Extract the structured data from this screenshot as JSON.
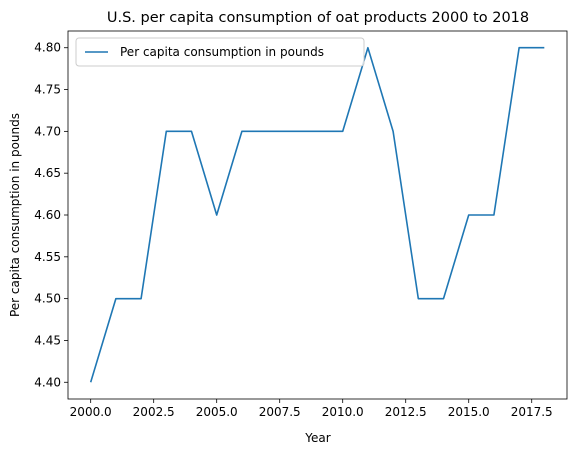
{
  "chart_data": {
    "type": "line",
    "title": "U.S. per capita consumption of oat products 2000 to 2018",
    "xlabel": "Year",
    "ylabel": "Per capita consumption in pounds",
    "x": [
      2000,
      2001,
      2002,
      2003,
      2004,
      2005,
      2006,
      2007,
      2008,
      2009,
      2010,
      2011,
      2012,
      2013,
      2014,
      2015,
      2016,
      2017,
      2018
    ],
    "series": [
      {
        "name": "Per capita consumption in pounds",
        "color": "#1f77b4",
        "values": [
          4.4,
          4.5,
          4.5,
          4.7,
          4.7,
          4.6,
          4.7,
          4.7,
          4.7,
          4.7,
          4.7,
          4.8,
          4.7,
          4.5,
          4.5,
          4.6,
          4.6,
          4.8,
          4.8
        ]
      }
    ],
    "xlim": [
      1999.1,
      2018.9
    ],
    "ylim": [
      4.38,
      4.82
    ],
    "xticks": [
      "2000.0",
      "2002.5",
      "2005.0",
      "2007.5",
      "2010.0",
      "2012.5",
      "2015.0",
      "2017.5"
    ],
    "yticks": [
      "4.40",
      "4.45",
      "4.50",
      "4.55",
      "4.60",
      "4.65",
      "4.70",
      "4.75",
      "4.80"
    ],
    "grid": false,
    "legend_position": "top-left"
  }
}
